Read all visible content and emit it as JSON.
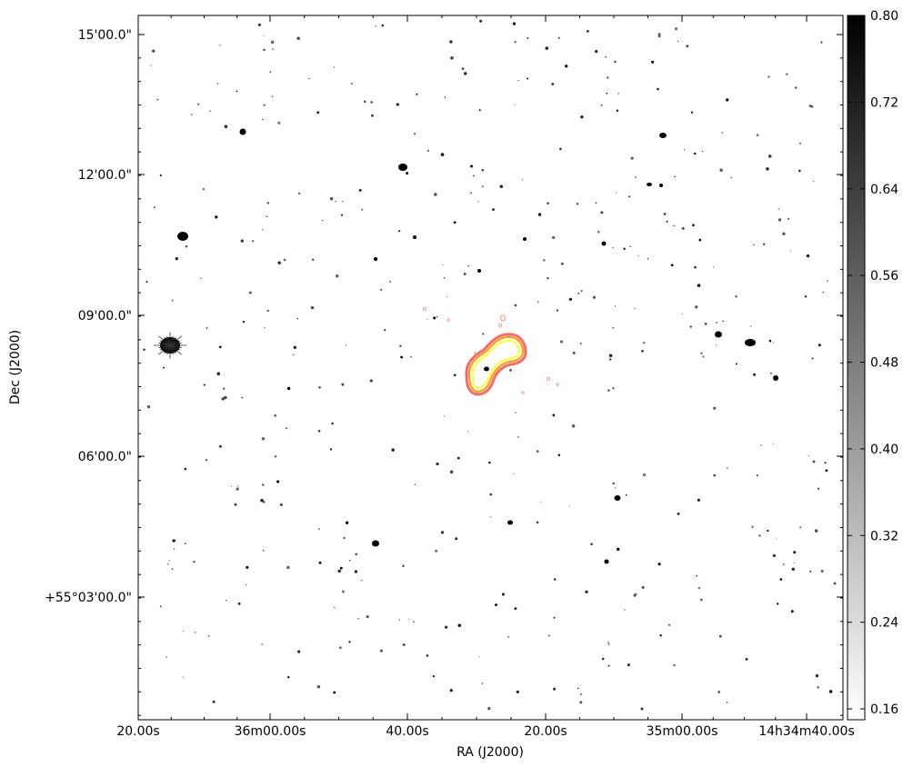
{
  "chart_data": {
    "type": "heatmap",
    "title": "",
    "xlabel": "RA (J2000)",
    "ylabel": "Dec (J2000)",
    "x_ticks": [
      "20.00s",
      "36m00.00s",
      "40.00s",
      "20.00s",
      "35m00.00s",
      "14h34m40.00s"
    ],
    "y_ticks": [
      "15'00.0\"",
      "12'00.0\"",
      "09'00.0\"",
      "06'00.0\"",
      "+55°03'00.0\""
    ],
    "colorbar": {
      "ticks": [
        "0.80",
        "0.72",
        "0.64",
        "0.56",
        "0.48",
        "0.40",
        "0.32",
        "0.24",
        "0.16"
      ],
      "vmin": 0.15,
      "vmax": 0.8,
      "colormap": "gray_r"
    },
    "contour_colors": [
      "#ff6666",
      "#ff9900",
      "#ffff33"
    ],
    "grid": false
  }
}
